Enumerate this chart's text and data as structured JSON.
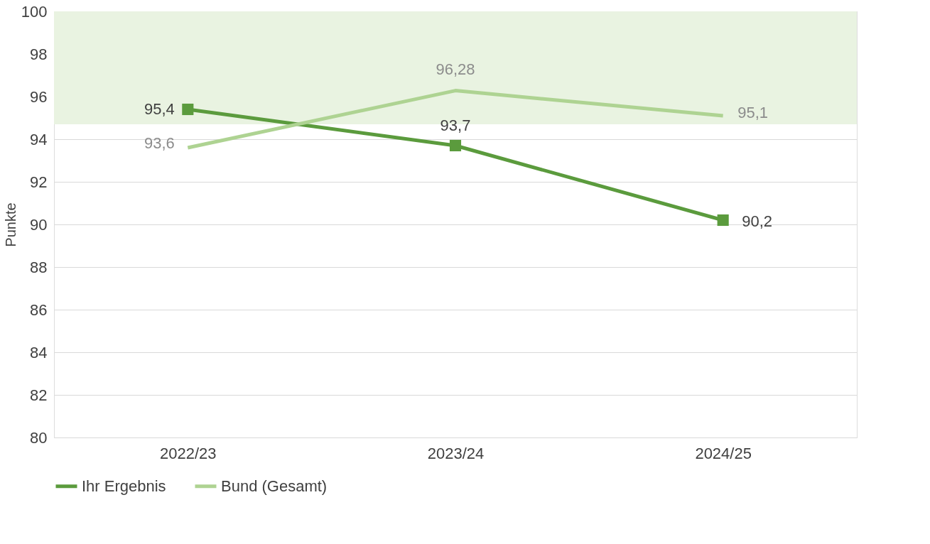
{
  "chart_data": {
    "type": "line",
    "ylabel": "Punkte",
    "categories": [
      "2022/23",
      "2023/24",
      "2024/25"
    ],
    "series": [
      {
        "name": "Ihr Ergebnis",
        "color": "#5b9b3d",
        "values": [
          95.4,
          93.7,
          90.2
        ],
        "value_labels": [
          "95,4",
          "93,7",
          "90,2"
        ],
        "marker": "square"
      },
      {
        "name": "Bund (Gesamt)",
        "color": "#aed392",
        "values": [
          93.6,
          96.28,
          95.1
        ],
        "value_labels": [
          "93,6",
          "96,28",
          "95,1"
        ],
        "marker": "none"
      }
    ],
    "ylim": [
      80,
      100
    ],
    "yticks": [
      80,
      82,
      84,
      86,
      88,
      90,
      92,
      94,
      96,
      98,
      100
    ],
    "bands": [
      {
        "axis": "y",
        "from": 94.7,
        "to": 100,
        "color": "#e9f3e1"
      }
    ],
    "grid": "y",
    "legend": "bottom",
    "line_style": "solid"
  }
}
